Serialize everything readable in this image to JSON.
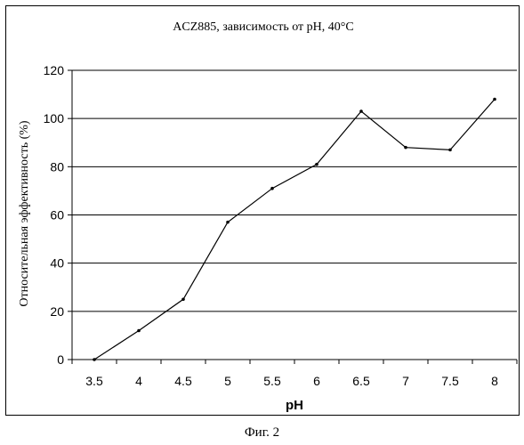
{
  "chart_data": {
    "type": "line",
    "title": "ACZ885, зависимость от pH, 40°C",
    "xlabel": "pH",
    "ylabel": "Относительная эффективность (%)",
    "categories": [
      "3.5",
      "4",
      "4.5",
      "5",
      "5.5",
      "6",
      "6.5",
      "7",
      "7.5",
      "8"
    ],
    "values": [
      0,
      12,
      25,
      57,
      71,
      81,
      103,
      88,
      87,
      108
    ],
    "ylim": [
      0,
      120
    ],
    "yticks": [
      "0",
      "20",
      "40",
      "60",
      "80",
      "100",
      "120"
    ],
    "grid": true,
    "line_color": "#000000"
  },
  "caption": "Фиг. 2"
}
